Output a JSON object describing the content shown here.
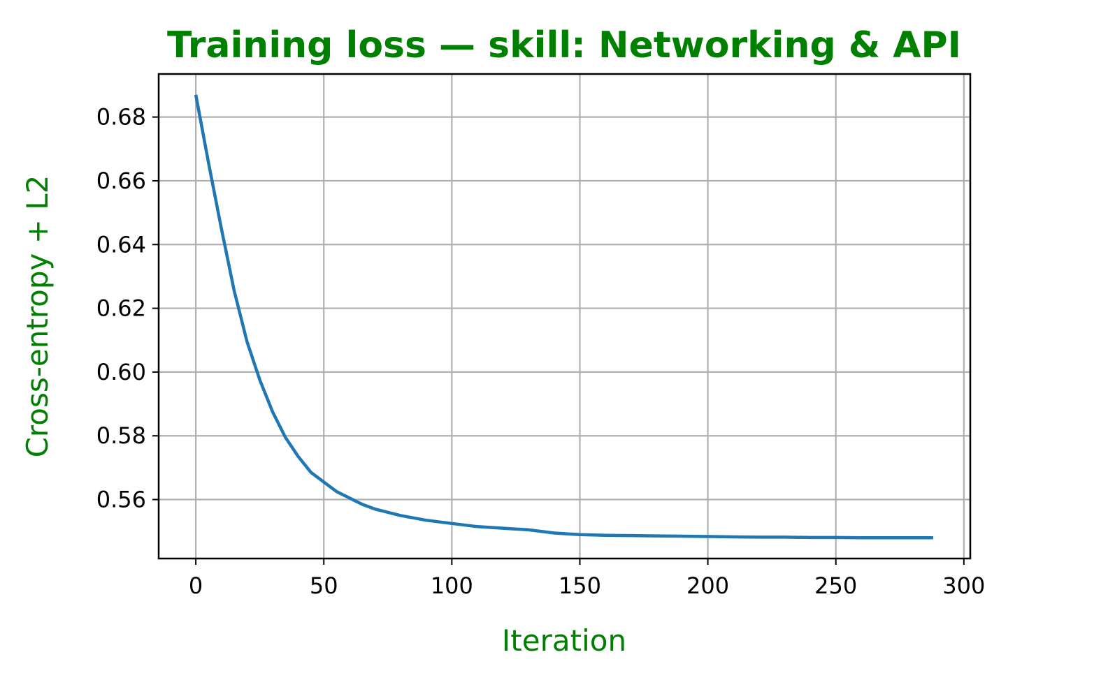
{
  "chart_data": {
    "type": "line",
    "title": "Training loss — skill: Networking & API",
    "xlabel": "Iteration",
    "ylabel": "Cross-entropy + L2",
    "xlim": [
      -14.5,
      302.5
    ],
    "ylim": [
      0.5415,
      0.6935
    ],
    "xticks": [
      0,
      50,
      100,
      150,
      200,
      250,
      300
    ],
    "xtick_labels": [
      "0",
      "50",
      "100",
      "150",
      "200",
      "250",
      "300"
    ],
    "yticks": [
      0.56,
      0.58,
      0.6,
      0.62,
      0.64,
      0.66,
      0.68
    ],
    "ytick_labels": [
      "0.56",
      "0.58",
      "0.60",
      "0.62",
      "0.64",
      "0.66",
      "0.68"
    ],
    "grid": true,
    "series": [
      {
        "color": "#1f77b4",
        "points": [
          [
            0,
            0.687
          ],
          [
            5,
            0.6655
          ],
          [
            10,
            0.645
          ],
          [
            15,
            0.6255
          ],
          [
            20,
            0.6095
          ],
          [
            25,
            0.5975
          ],
          [
            30,
            0.5875
          ],
          [
            35,
            0.5795
          ],
          [
            40,
            0.5735
          ],
          [
            45,
            0.5685
          ],
          [
            50,
            0.5655
          ],
          [
            55,
            0.5625
          ],
          [
            60,
            0.5605
          ],
          [
            65,
            0.5585
          ],
          [
            70,
            0.557
          ],
          [
            80,
            0.555
          ],
          [
            90,
            0.5535
          ],
          [
            100,
            0.5525
          ],
          [
            110,
            0.5515
          ],
          [
            120,
            0.551
          ],
          [
            130,
            0.5505
          ],
          [
            140,
            0.5495
          ],
          [
            150,
            0.549
          ],
          [
            160,
            0.5488
          ],
          [
            170,
            0.5487
          ],
          [
            180,
            0.5486
          ],
          [
            190,
            0.5485
          ],
          [
            200,
            0.5484
          ],
          [
            210,
            0.5483
          ],
          [
            220,
            0.5482
          ],
          [
            230,
            0.5482
          ],
          [
            240,
            0.5481
          ],
          [
            250,
            0.5481
          ],
          [
            260,
            0.548
          ],
          [
            270,
            0.548
          ],
          [
            280,
            0.548
          ],
          [
            288,
            0.548
          ]
        ]
      }
    ]
  },
  "colors": {
    "title": "#008000",
    "axis_label": "#008000",
    "line": "#1f77b4",
    "grid": "#b0b0b0",
    "frame": "#000000"
  }
}
